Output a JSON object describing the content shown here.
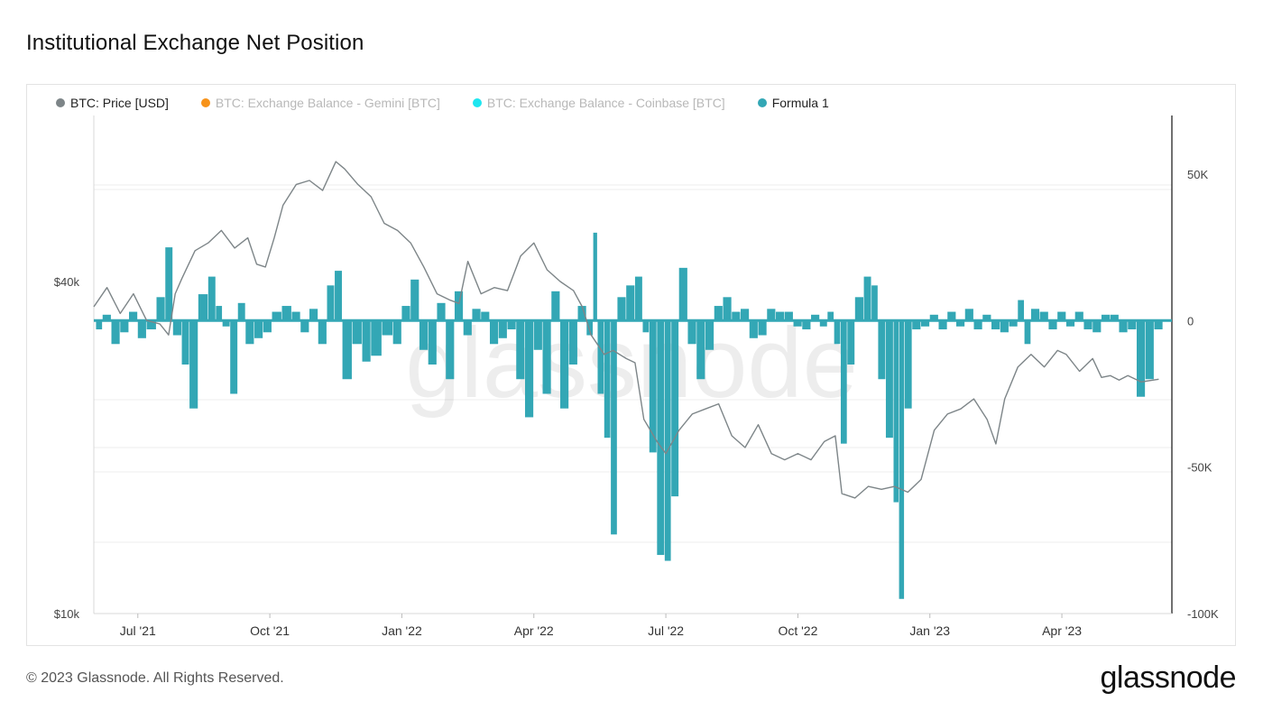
{
  "header": {
    "title": "Institutional Exchange Net Position"
  },
  "legend": [
    {
      "label": "BTC: Price [USD]",
      "color": "#7d8588",
      "active": true
    },
    {
      "label": "BTC: Exchange Balance - Gemini [BTC]",
      "color": "#f7931a",
      "active": false
    },
    {
      "label": "BTC: Exchange Balance - Coinbase [BTC]",
      "color": "#1ee6f0",
      "active": false
    },
    {
      "label": "Formula 1",
      "color": "#33a7b5",
      "active": true
    }
  ],
  "footer": {
    "copyright": "© 2023 Glassnode. All Rights Reserved.",
    "brand": "glassnode"
  },
  "watermark": "glassnode",
  "chart_data": {
    "type": "line+bar",
    "title": "Institutional Exchange Net Position",
    "x_tick_labels": [
      "Jul '21",
      "Oct '21",
      "Jan '22",
      "Apr '22",
      "Jul '22",
      "Oct '22",
      "Jan '23",
      "Apr '23"
    ],
    "x_tick_positions": [
      1,
      4,
      7,
      10,
      13,
      16,
      19,
      22
    ],
    "x_range": [
      0,
      24.5
    ],
    "left_axis": {
      "scale": "log",
      "range": [
        10000,
        80000
      ],
      "tick_labels": [
        "$10k",
        "$40k"
      ],
      "tick_values": [
        10000,
        40000
      ]
    },
    "right_axis": {
      "range": [
        -100000,
        70000
      ],
      "tick_labels": [
        "50K",
        "0",
        "-50K",
        "-100K"
      ],
      "tick_values": [
        50000,
        0,
        -50000,
        -100000
      ]
    },
    "series": [
      {
        "name": "BTC: Price [USD]",
        "type": "line",
        "axis": "left",
        "points": [
          [
            0,
            36000
          ],
          [
            0.3,
            39000
          ],
          [
            0.6,
            35000
          ],
          [
            0.9,
            38000
          ],
          [
            1.2,
            34000
          ],
          [
            1.5,
            33500
          ],
          [
            1.7,
            32000
          ],
          [
            1.85,
            38000
          ],
          [
            2.0,
            40500
          ],
          [
            2.3,
            45500
          ],
          [
            2.6,
            47000
          ],
          [
            2.9,
            49500
          ],
          [
            3.2,
            46000
          ],
          [
            3.5,
            48000
          ],
          [
            3.7,
            43000
          ],
          [
            3.9,
            42500
          ],
          [
            4.1,
            48000
          ],
          [
            4.3,
            55000
          ],
          [
            4.6,
            60000
          ],
          [
            4.9,
            61000
          ],
          [
            5.2,
            58500
          ],
          [
            5.5,
            66000
          ],
          [
            5.7,
            64000
          ],
          [
            6.0,
            60000
          ],
          [
            6.3,
            57000
          ],
          [
            6.6,
            51000
          ],
          [
            6.9,
            49500
          ],
          [
            7.2,
            47000
          ],
          [
            7.5,
            42500
          ],
          [
            7.8,
            38000
          ],
          [
            8.1,
            37000
          ],
          [
            8.3,
            36500
          ],
          [
            8.5,
            43500
          ],
          [
            8.8,
            38000
          ],
          [
            9.1,
            39000
          ],
          [
            9.4,
            38500
          ],
          [
            9.7,
            44500
          ],
          [
            10.0,
            47000
          ],
          [
            10.3,
            42000
          ],
          [
            10.6,
            40000
          ],
          [
            10.9,
            38500
          ],
          [
            11.1,
            36000
          ],
          [
            11.3,
            32000
          ],
          [
            11.6,
            29500
          ],
          [
            11.8,
            30000
          ],
          [
            12.1,
            29000
          ],
          [
            12.3,
            28500
          ],
          [
            12.5,
            22500
          ],
          [
            12.8,
            20500
          ],
          [
            13.0,
            19500
          ],
          [
            13.3,
            21500
          ],
          [
            13.6,
            23000
          ],
          [
            13.9,
            23500
          ],
          [
            14.2,
            24000
          ],
          [
            14.5,
            21000
          ],
          [
            14.8,
            20000
          ],
          [
            15.1,
            22000
          ],
          [
            15.4,
            19500
          ],
          [
            15.7,
            19000
          ],
          [
            16.0,
            19500
          ],
          [
            16.3,
            19000
          ],
          [
            16.6,
            20500
          ],
          [
            16.85,
            21000
          ],
          [
            17.0,
            16500
          ],
          [
            17.3,
            16200
          ],
          [
            17.6,
            17000
          ],
          [
            17.9,
            16800
          ],
          [
            18.2,
            17000
          ],
          [
            18.5,
            16600
          ],
          [
            18.8,
            17500
          ],
          [
            19.1,
            21500
          ],
          [
            19.4,
            23000
          ],
          [
            19.7,
            23500
          ],
          [
            20.0,
            24500
          ],
          [
            20.3,
            22500
          ],
          [
            20.5,
            20300
          ],
          [
            20.7,
            24500
          ],
          [
            21.0,
            28000
          ],
          [
            21.3,
            29500
          ],
          [
            21.6,
            28000
          ],
          [
            21.9,
            30000
          ],
          [
            22.1,
            29500
          ],
          [
            22.4,
            27500
          ],
          [
            22.7,
            29000
          ],
          [
            22.9,
            26800
          ],
          [
            23.1,
            27000
          ],
          [
            23.3,
            26500
          ],
          [
            23.5,
            27000
          ],
          [
            23.8,
            26300
          ],
          [
            24.2,
            26600
          ]
        ]
      },
      {
        "name": "Formula 1",
        "type": "bar",
        "axis": "right",
        "points": [
          [
            0.1,
            -3000
          ],
          [
            0.3,
            2000
          ],
          [
            0.5,
            -8000
          ],
          [
            0.7,
            -4000
          ],
          [
            0.9,
            3000
          ],
          [
            1.1,
            -6000
          ],
          [
            1.3,
            -3000
          ],
          [
            1.55,
            8000
          ],
          [
            1.7,
            25000
          ],
          [
            1.9,
            -5000
          ],
          [
            2.1,
            -15000
          ],
          [
            2.25,
            -30000
          ],
          [
            2.5,
            9000
          ],
          [
            2.7,
            15000
          ],
          [
            2.85,
            5000
          ],
          [
            3.0,
            -2000
          ],
          [
            3.2,
            -25000
          ],
          [
            3.35,
            6000
          ],
          [
            3.55,
            -8000
          ],
          [
            3.75,
            -6000
          ],
          [
            3.95,
            -4000
          ],
          [
            4.15,
            3000
          ],
          [
            4.4,
            5000
          ],
          [
            4.6,
            3000
          ],
          [
            4.8,
            -4000
          ],
          [
            5.0,
            4000
          ],
          [
            5.2,
            -8000
          ],
          [
            5.4,
            12000
          ],
          [
            5.55,
            17000
          ],
          [
            5.75,
            -20000
          ],
          [
            6.0,
            -8000
          ],
          [
            6.2,
            -14000
          ],
          [
            6.4,
            -12000
          ],
          [
            6.7,
            -5000
          ],
          [
            6.9,
            -8000
          ],
          [
            7.1,
            5000
          ],
          [
            7.3,
            14000
          ],
          [
            7.5,
            -10000
          ],
          [
            7.7,
            -15000
          ],
          [
            7.9,
            6000
          ],
          [
            8.1,
            -20000
          ],
          [
            8.3,
            10000
          ],
          [
            8.5,
            -5000
          ],
          [
            8.7,
            4000
          ],
          [
            8.9,
            3000
          ],
          [
            9.1,
            -8000
          ],
          [
            9.3,
            -6000
          ],
          [
            9.5,
            -3000
          ],
          [
            9.7,
            -20000
          ],
          [
            9.9,
            -33000
          ],
          [
            10.1,
            -10000
          ],
          [
            10.3,
            -25000
          ],
          [
            10.5,
            10000
          ],
          [
            10.7,
            -30000
          ],
          [
            10.9,
            -15000
          ],
          [
            11.1,
            5000
          ],
          [
            11.3,
            -5000
          ],
          [
            11.4,
            30000
          ],
          [
            11.5,
            -25000
          ],
          [
            11.7,
            -40000
          ],
          [
            11.8,
            -73000
          ],
          [
            12.0,
            8000
          ],
          [
            12.2,
            12000
          ],
          [
            12.4,
            15000
          ],
          [
            12.55,
            -4000
          ],
          [
            12.7,
            -45000
          ],
          [
            12.9,
            -80000
          ],
          [
            13.05,
            -82000
          ],
          [
            13.2,
            -60000
          ],
          [
            13.4,
            18000
          ],
          [
            13.6,
            -8000
          ],
          [
            13.8,
            -20000
          ],
          [
            14.0,
            -10000
          ],
          [
            14.2,
            5000
          ],
          [
            14.4,
            8000
          ],
          [
            14.6,
            3000
          ],
          [
            14.8,
            4000
          ],
          [
            15.0,
            -6000
          ],
          [
            15.2,
            -5000
          ],
          [
            15.4,
            4000
          ],
          [
            15.6,
            3000
          ],
          [
            15.8,
            3000
          ],
          [
            16.0,
            -2000
          ],
          [
            16.2,
            -3000
          ],
          [
            16.4,
            2000
          ],
          [
            16.6,
            -2000
          ],
          [
            16.75,
            3000
          ],
          [
            16.9,
            -8000
          ],
          [
            17.05,
            -42000
          ],
          [
            17.2,
            -15000
          ],
          [
            17.4,
            8000
          ],
          [
            17.6,
            15000
          ],
          [
            17.75,
            12000
          ],
          [
            17.9,
            -20000
          ],
          [
            18.1,
            -40000
          ],
          [
            18.25,
            -62000
          ],
          [
            18.35,
            -95000
          ],
          [
            18.5,
            -30000
          ],
          [
            18.7,
            -3000
          ],
          [
            18.9,
            -2000
          ],
          [
            19.1,
            2000
          ],
          [
            19.3,
            -3000
          ],
          [
            19.5,
            3000
          ],
          [
            19.7,
            -2000
          ],
          [
            19.9,
            4000
          ],
          [
            20.1,
            -3000
          ],
          [
            20.3,
            2000
          ],
          [
            20.5,
            -3000
          ],
          [
            20.7,
            -4000
          ],
          [
            20.9,
            -2000
          ],
          [
            21.1,
            7000
          ],
          [
            21.2,
            -8000
          ],
          [
            21.4,
            4000
          ],
          [
            21.6,
            3000
          ],
          [
            21.8,
            -3000
          ],
          [
            22.0,
            3000
          ],
          [
            22.2,
            -2000
          ],
          [
            22.4,
            3000
          ],
          [
            22.6,
            -3000
          ],
          [
            22.8,
            -4000
          ],
          [
            23.0,
            2000
          ],
          [
            23.2,
            2000
          ],
          [
            23.4,
            -4000
          ],
          [
            23.6,
            -3000
          ],
          [
            23.8,
            -26000
          ],
          [
            24.0,
            -20000
          ],
          [
            24.2,
            -3000
          ]
        ]
      }
    ]
  }
}
